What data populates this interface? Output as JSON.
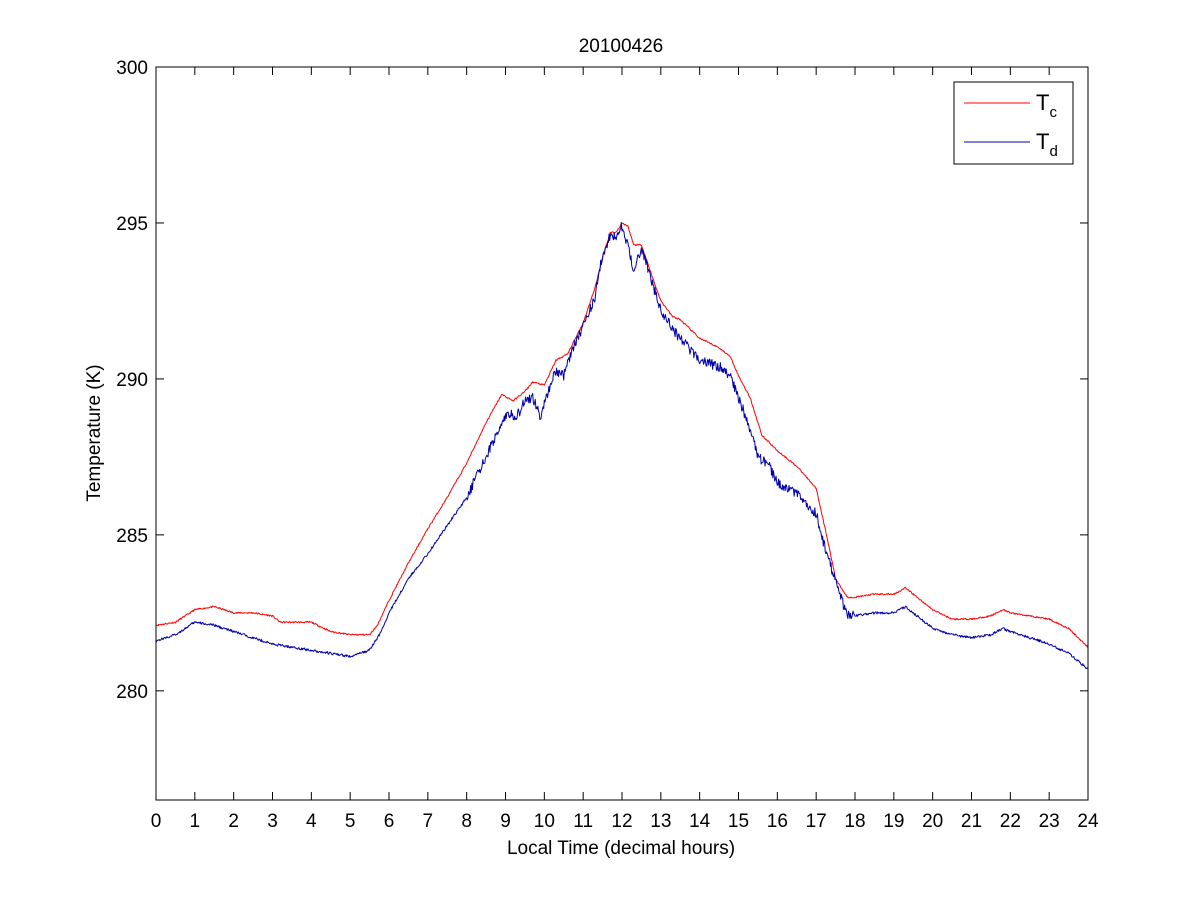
{
  "chart_data": {
    "type": "line",
    "title": "20100426",
    "xlabel": "Local Time (decimal hours)",
    "ylabel": "Temperature (K)",
    "xlim": [
      0,
      24
    ],
    "ylim": [
      276.5,
      300
    ],
    "xticks": [
      0,
      1,
      2,
      3,
      4,
      5,
      6,
      7,
      8,
      9,
      10,
      11,
      12,
      13,
      14,
      15,
      16,
      17,
      18,
      19,
      20,
      21,
      22,
      23,
      24
    ],
    "yticks": [
      280,
      285,
      290,
      295,
      300
    ],
    "grid": false,
    "legend_position": "top-right",
    "series": [
      {
        "name": "T_c",
        "legend_main": "T",
        "legend_sub": "c",
        "color": "#ff0000",
        "x": [
          0,
          0.5,
          1,
          1.5,
          2,
          2.5,
          3,
          3.2,
          3.5,
          4,
          4.5,
          5,
          5.3,
          5.5,
          5.7,
          6,
          6.5,
          7,
          7.5,
          8,
          8.5,
          8.9,
          9.2,
          9.5,
          9.7,
          10,
          10.3,
          10.6,
          10.8,
          11,
          11.3,
          11.5,
          11.7,
          11.85,
          12,
          12.15,
          12.3,
          12.5,
          12.8,
          13,
          13.3,
          13.5,
          14,
          14.5,
          14.8,
          15,
          15.3,
          15.6,
          16,
          16.5,
          17,
          17.3,
          17.5,
          17.8,
          18,
          18.5,
          19,
          19.3,
          19.5,
          20,
          20.5,
          21,
          21.5,
          21.8,
          22,
          22.5,
          23,
          23.5,
          24
        ],
        "y": [
          282.1,
          282.2,
          282.6,
          282.7,
          282.5,
          282.5,
          282.4,
          282.2,
          282.2,
          282.2,
          281.9,
          281.8,
          281.8,
          281.8,
          282.1,
          282.9,
          284.1,
          285.2,
          286.2,
          287.3,
          288.6,
          289.5,
          289.3,
          289.6,
          289.9,
          289.8,
          290.6,
          290.8,
          291.3,
          291.8,
          292.9,
          293.9,
          294.7,
          294.7,
          295.0,
          294.9,
          294.3,
          294.3,
          293.2,
          292.5,
          292.0,
          291.9,
          291.3,
          291.0,
          290.7,
          290.1,
          289.4,
          288.2,
          287.7,
          287.2,
          286.5,
          284.8,
          283.6,
          283.0,
          283.0,
          283.1,
          283.1,
          283.3,
          283.1,
          282.6,
          282.3,
          282.3,
          282.4,
          282.6,
          282.5,
          282.4,
          282.3,
          282.0,
          281.4
        ]
      },
      {
        "name": "T_d",
        "legend_main": "T",
        "legend_sub": "d",
        "color": "#0000aa",
        "x": [
          0,
          0.5,
          1,
          1.5,
          2,
          2.5,
          3,
          3.5,
          4,
          4.5,
          5,
          5.5,
          5.8,
          6,
          6.5,
          7,
          7.5,
          8,
          8.5,
          8.9,
          9.1,
          9.3,
          9.5,
          9.7,
          9.9,
          10.1,
          10.3,
          10.5,
          10.7,
          11,
          11.3,
          11.5,
          11.7,
          11.85,
          12,
          12.15,
          12.3,
          12.5,
          12.8,
          13,
          13.3,
          13.5,
          14,
          14.5,
          14.8,
          15,
          15.3,
          15.5,
          15.8,
          16,
          16.5,
          17,
          17.2,
          17.5,
          17.8,
          18,
          18.5,
          19,
          19.3,
          19.5,
          20,
          20.5,
          21,
          21.5,
          21.8,
          22,
          22.5,
          23,
          23.5,
          24
        ],
        "y": [
          281.6,
          281.8,
          282.2,
          282.1,
          281.9,
          281.7,
          281.5,
          281.4,
          281.3,
          281.2,
          281.1,
          281.3,
          281.9,
          282.5,
          283.6,
          284.4,
          285.3,
          286.2,
          287.5,
          288.6,
          288.9,
          288.8,
          289.3,
          289.4,
          288.8,
          289.6,
          290.3,
          290.1,
          290.9,
          291.7,
          292.6,
          294.0,
          294.6,
          294.5,
          294.9,
          294.3,
          293.4,
          294.2,
          293.0,
          292.2,
          291.6,
          291.3,
          290.6,
          290.4,
          290.1,
          289.4,
          288.4,
          287.5,
          287.2,
          286.7,
          286.3,
          285.7,
          284.7,
          283.5,
          282.4,
          282.4,
          282.5,
          282.5,
          282.7,
          282.5,
          282.0,
          281.8,
          281.7,
          281.8,
          282.0,
          281.9,
          281.7,
          281.5,
          281.2,
          280.7
        ]
      }
    ]
  }
}
